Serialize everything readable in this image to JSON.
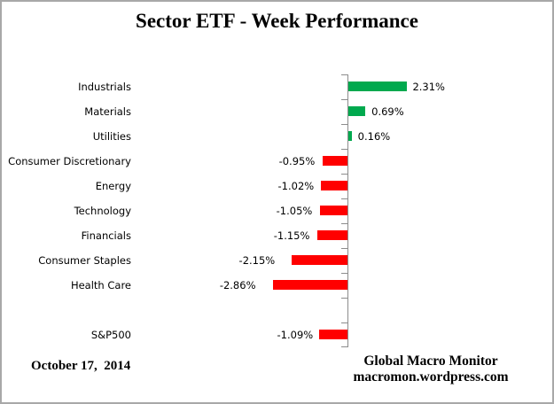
{
  "title": "Sector ETF - Week Performance",
  "footer": {
    "date": "October 17,  2014",
    "brand_line1": "Global Macro Monitor",
    "brand_line2": "macromon.wordpress.com"
  },
  "colors": {
    "positive_bar": "#00a94e",
    "negative_bar": "#ff0000",
    "axis": "#8c8c8c",
    "text": "#000000",
    "border": "#a8a8a8"
  },
  "chart_data": {
    "type": "bar",
    "orientation": "horizontal",
    "title": "Sector ETF - Week Performance",
    "unit": "%",
    "categories": [
      "Industrials",
      "Materials",
      "Utilities",
      "Consumer Discretionary",
      "Energy",
      "Technology",
      "Financials",
      "Consumer Staples",
      "Health Care",
      "",
      "S&P500"
    ],
    "values": [
      2.31,
      0.69,
      0.16,
      -0.95,
      -1.02,
      -1.05,
      -1.15,
      -2.15,
      -2.86,
      null,
      -1.09
    ],
    "value_labels": [
      "2.31%",
      "0.69%",
      "0.16%",
      "-0.95%",
      "-1.02%",
      "-1.05%",
      "-1.15%",
      "-2.15%",
      "-2.86%",
      "",
      "-1.09%"
    ],
    "positive_color": "#00a94e",
    "negative_color": "#ff0000",
    "legend": "none",
    "grid": "off",
    "value_axis_visible": false,
    "category_axis": "vertical line with ticks, labels outside end of bars"
  }
}
